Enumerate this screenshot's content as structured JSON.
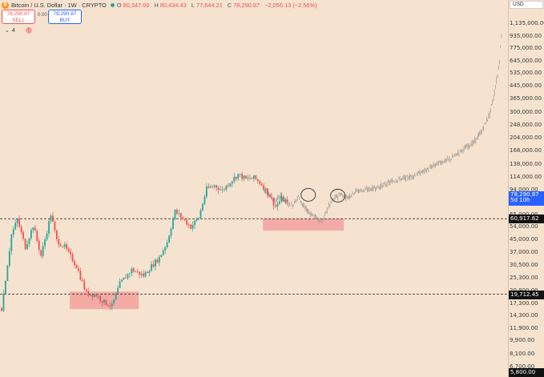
{
  "header": {
    "logo_glyph": "₿",
    "symbol": "Bitcoin / U.S. Dollar · 1W · CRYPTO",
    "ohlc": [
      {
        "label": "O",
        "value": "80,347.00"
      },
      {
        "label": "H",
        "value": "80,434.43"
      },
      {
        "label": "L",
        "value": "77,644.21"
      },
      {
        "label": "C",
        "value": "78,290.87"
      }
    ],
    "change": "−2,056.13 (−2.56%)"
  },
  "trade": {
    "sell_price": "78,290.87",
    "sell_label": "SELL",
    "spread": "0.00",
    "buy_price": "78,290.87",
    "buy_label": "BUY"
  },
  "indicator_count": "4",
  "alert_glyph": "!",
  "currency": "USD",
  "price_tags": {
    "current_price": "78,290.87",
    "current_countdown": "5d 10h",
    "level_high": "60,917.62",
    "level_low": "19,712.45",
    "bottom_cut": "5,800.00"
  },
  "colors": {
    "background": "#f5e3cf",
    "up_candle": "#26a69a",
    "down_candle": "#ef5350",
    "projection": "#a09a92",
    "zone": "#f4a3a0",
    "current_tag": "#2962ff"
  },
  "chart_data": {
    "type": "candlestick",
    "title": "Bitcoin / U.S. Dollar · 1W · CRYPTO",
    "scale": "log",
    "ylim": [
      5800,
      1135000
    ],
    "y_ticks": [
      1135000,
      935000,
      775000,
      645000,
      535000,
      445000,
      365000,
      300000,
      248000,
      204000,
      168000,
      138000,
      114000,
      94000,
      78000,
      65000,
      54000,
      45000,
      37000,
      30500,
      25300,
      20900,
      17300,
      14300,
      11900,
      9900,
      8100,
      6700
    ],
    "y_tick_labels": [
      "1,135,000.00",
      "935,000.00",
      "775,000.00",
      "645,000.00",
      "535,000.00",
      "445,000.00",
      "365,000.00",
      "300,000.00",
      "248,000.00",
      "204,000.00",
      "168,000.00",
      "138,000.00",
      "114,000.00",
      "94,000.00",
      "78,000.00",
      "65,000.00",
      "54,000.00",
      "45,000.00",
      "37,000.00",
      "30,500.00",
      "25,300.00",
      "20,900.00",
      "17,300.00",
      "14,300.00",
      "11,900.00",
      "9,900.00",
      "8,100.00",
      "6,700.00"
    ],
    "horizontal_levels": [
      60917.62,
      19712.45
    ],
    "support_zones": [
      {
        "from": 15800,
        "to": 20500,
        "bar_start": 35,
        "bar_end": 70
      },
      {
        "from": 51000,
        "to": 61000,
        "bar_start": 133,
        "bar_end": 174
      }
    ],
    "price_path": [
      {
        "bar": 0,
        "price": 16000
      },
      {
        "bar": 5,
        "price": 48000
      },
      {
        "bar": 8,
        "price": 60000
      },
      {
        "bar": 12,
        "price": 40000
      },
      {
        "bar": 16,
        "price": 55000
      },
      {
        "bar": 20,
        "price": 35000
      },
      {
        "bar": 25,
        "price": 65000
      },
      {
        "bar": 28,
        "price": 44000
      },
      {
        "bar": 32,
        "price": 40000
      },
      {
        "bar": 38,
        "price": 30000
      },
      {
        "bar": 43,
        "price": 20000
      },
      {
        "bar": 48,
        "price": 19500
      },
      {
        "bar": 52,
        "price": 17500
      },
      {
        "bar": 56,
        "price": 16500
      },
      {
        "bar": 60,
        "price": 23000
      },
      {
        "bar": 66,
        "price": 28500
      },
      {
        "bar": 72,
        "price": 26000
      },
      {
        "bar": 76,
        "price": 30000
      },
      {
        "bar": 80,
        "price": 34000
      },
      {
        "bar": 84,
        "price": 43000
      },
      {
        "bar": 88,
        "price": 68000
      },
      {
        "bar": 92,
        "price": 61000
      },
      {
        "bar": 96,
        "price": 54000
      },
      {
        "bar": 100,
        "price": 62000
      },
      {
        "bar": 104,
        "price": 95000
      },
      {
        "bar": 108,
        "price": 100000
      },
      {
        "bar": 112,
        "price": 93000
      },
      {
        "bar": 116,
        "price": 106000
      },
      {
        "bar": 120,
        "price": 118000
      },
      {
        "bar": 124,
        "price": 110000
      },
      {
        "bar": 128,
        "price": 112000
      },
      {
        "bar": 132,
        "price": 102000
      },
      {
        "bar": 136,
        "price": 86000
      },
      {
        "bar": 139,
        "price": 73000
      },
      {
        "bar": 142,
        "price": 82000
      },
      {
        "bar": 145,
        "price": 78290.87
      }
    ],
    "projection_path": [
      {
        "bar": 133,
        "price": 95000
      },
      {
        "bar": 136,
        "price": 88000
      },
      {
        "bar": 139,
        "price": 80000
      },
      {
        "bar": 142,
        "price": 86000
      },
      {
        "bar": 145,
        "price": 78000
      },
      {
        "bar": 148,
        "price": 74000
      },
      {
        "bar": 151,
        "price": 85000
      },
      {
        "bar": 154,
        "price": 72000
      },
      {
        "bar": 157,
        "price": 66000
      },
      {
        "bar": 160,
        "price": 62000
      },
      {
        "bar": 163,
        "price": 58000
      },
      {
        "bar": 166,
        "price": 72000
      },
      {
        "bar": 169,
        "price": 82000
      },
      {
        "bar": 172,
        "price": 88000
      },
      {
        "bar": 176,
        "price": 84000
      },
      {
        "bar": 180,
        "price": 92000
      },
      {
        "bar": 186,
        "price": 94000
      },
      {
        "bar": 192,
        "price": 98000
      },
      {
        "bar": 200,
        "price": 108000
      },
      {
        "bar": 208,
        "price": 114000
      },
      {
        "bar": 216,
        "price": 126000
      },
      {
        "bar": 222,
        "price": 140000
      },
      {
        "bar": 228,
        "price": 148000
      },
      {
        "bar": 234,
        "price": 170000
      },
      {
        "bar": 240,
        "price": 190000
      },
      {
        "bar": 244,
        "price": 225000
      },
      {
        "bar": 248,
        "price": 290000
      },
      {
        "bar": 250,
        "price": 370000
      },
      {
        "bar": 252,
        "price": 520000
      },
      {
        "bar": 253,
        "price": 650000
      },
      {
        "bar": 254,
        "price": 935000
      }
    ],
    "ellipses": [
      {
        "bar": 156,
        "price": 87000
      },
      {
        "bar": 171,
        "price": 86000
      }
    ]
  }
}
